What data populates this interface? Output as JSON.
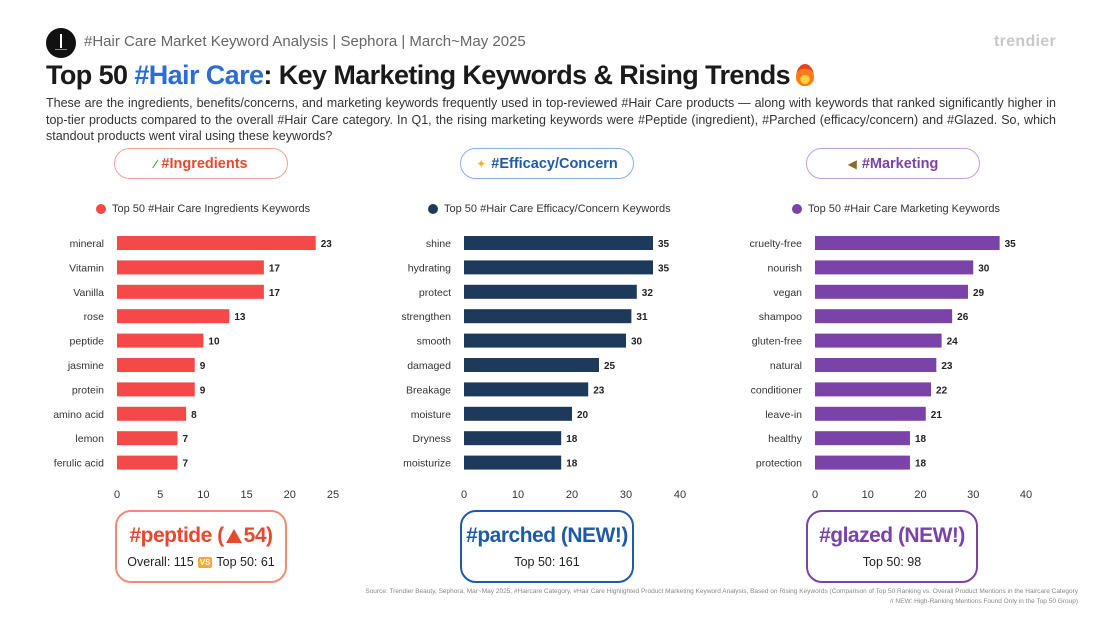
{
  "header": {
    "subtitle": "#Hair Care Market Keyword Analysis | Sephora | March~May 2025",
    "brand": "trendier"
  },
  "title": {
    "prefix": "Top 50 ",
    "accent": "#Hair Care",
    "suffix": ": Key Marketing Keywords & Rising Trends"
  },
  "description": "These are the ingredients, benefits/concerns, and marketing keywords frequently used in top-reviewed #Hair Care products — along with keywords that ranked significantly higher in top-tier products compared to the overall #Hair Care category. In Q1, the rising marketing keywords were #Peptide (ingredient), #Parched (efficacy/concern) and #Glazed. So, which standout products went viral using these keywords?",
  "colors": {
    "ingredients": "#f54848",
    "efficacy": "#1d3a5c",
    "marketing": "#7b42a8",
    "peptide_title": "#e8482d",
    "parched_title": "#1f5aa6",
    "glazed_title": "#7b42a8"
  },
  "chart_data": [
    {
      "type": "bar",
      "orientation": "horizontal",
      "pill_icon": "test-tube-icon",
      "pill_label": "#Ingredients",
      "legend": "Top 50 #Hair Care Ingredients Keywords",
      "categories": [
        "mineral",
        "Vitamin",
        "Vanilla",
        "rose",
        "peptide",
        "jasmine",
        "protein",
        "amino acid",
        "lemon",
        "ferulic acid"
      ],
      "values": [
        23,
        17,
        17,
        13,
        10,
        9,
        9,
        8,
        7,
        7
      ],
      "xlim": [
        0,
        25
      ],
      "xticks": [
        0,
        5,
        10,
        15,
        20,
        25
      ],
      "color": "#f54848"
    },
    {
      "type": "bar",
      "orientation": "horizontal",
      "pill_icon": "sparkles-icon",
      "pill_label": "#Efficacy/Concern",
      "legend": "Top 50 #Hair Care Efficacy/Concern Keywords",
      "categories": [
        "shine",
        "hydrating",
        "protect",
        "strengthen",
        "smooth",
        "damaged",
        "Breakage",
        "moisture",
        "Dryness",
        "moisturize"
      ],
      "values": [
        35,
        35,
        32,
        31,
        30,
        25,
        23,
        20,
        18,
        18
      ],
      "xlim": [
        0,
        40
      ],
      "xticks": [
        0,
        10,
        20,
        30,
        40
      ],
      "color": "#1d3a5c"
    },
    {
      "type": "bar",
      "orientation": "horizontal",
      "pill_icon": "megaphone-icon",
      "pill_label": "#Marketing",
      "legend": "Top 50 #Hair Care Marketing Keywords",
      "categories": [
        "cruelty-free",
        "nourish",
        "vegan",
        "shampoo",
        "gluten-free",
        "natural",
        "conditioner",
        "leave-in",
        "healthy",
        "protection"
      ],
      "values": [
        35,
        30,
        29,
        26,
        24,
        23,
        22,
        21,
        18,
        18
      ],
      "xlim": [
        0,
        40
      ],
      "xticks": [
        0,
        10,
        20,
        30,
        40
      ],
      "color": "#7b42a8"
    }
  ],
  "highlights": {
    "peptide": {
      "keyword": "#peptide",
      "change_open": "(",
      "change_value": "54",
      "change_close": ")",
      "overall_text": "Overall: 115",
      "vs_label": "VS",
      "top_text": "Top 50: 61"
    },
    "parched": {
      "keyword": "#parched (NEW!)",
      "top_text": "Top 50: 161"
    },
    "glazed": {
      "keyword": "#glazed (NEW!)",
      "top_text": "Top 50: 98"
    }
  },
  "source": {
    "line1": "Source: Trendier Beauty, Sephora, Mar~May 2025, #Haircare Category, #Hair Care Highlighted Product Marketing Keyword Analysis, Based on Rising Keywords (Comparison of Top 50 Ranking vs. Overall Product Mentions in the Haircare Category",
    "line2": "// NEW: High-Ranking Mentions Found Only in the Top 50 Group)"
  }
}
